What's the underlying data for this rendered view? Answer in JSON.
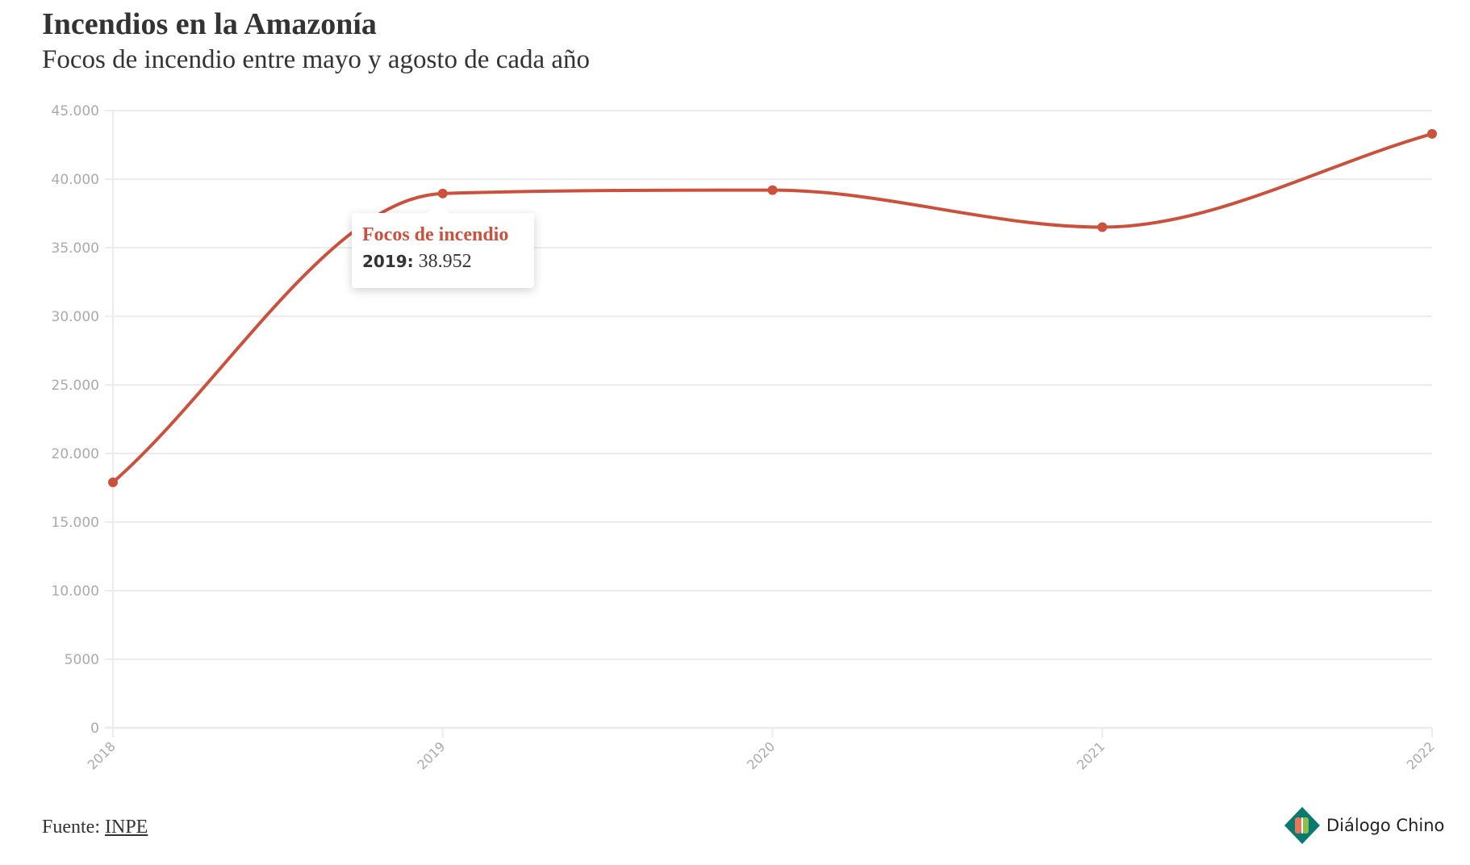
{
  "chart_data": {
    "type": "line",
    "title": "Incendios en la Amazonía",
    "subtitle": "Focos de incendio entre mayo y agosto de cada año",
    "categories": [
      "2018",
      "2019",
      "2020",
      "2021",
      "2022"
    ],
    "series": [
      {
        "name": "Focos de incendio",
        "values": [
          17900,
          38952,
          39200,
          36500,
          43300
        ],
        "color": "#cc513d"
      }
    ],
    "ylim": [
      0,
      45000
    ],
    "yticks": [
      0,
      5000,
      10000,
      15000,
      20000,
      25000,
      30000,
      35000,
      40000,
      45000
    ],
    "ytick_labels": [
      "0",
      "5000",
      "10.000",
      "15.000",
      "20.000",
      "25.000",
      "30.000",
      "35.000",
      "40.000",
      "45.000"
    ],
    "grid": true,
    "xlabel": "",
    "ylabel": ""
  },
  "tooltip": {
    "series": "Focos de incendio",
    "year": "2019:",
    "value": "38.952"
  },
  "footer": {
    "label": "Fuente:",
    "link": "INPE"
  },
  "logo": {
    "text": "Diálogo Chino",
    "colors": [
      "#0b7a6e",
      "#e8765a",
      "#8cbf4b"
    ]
  }
}
